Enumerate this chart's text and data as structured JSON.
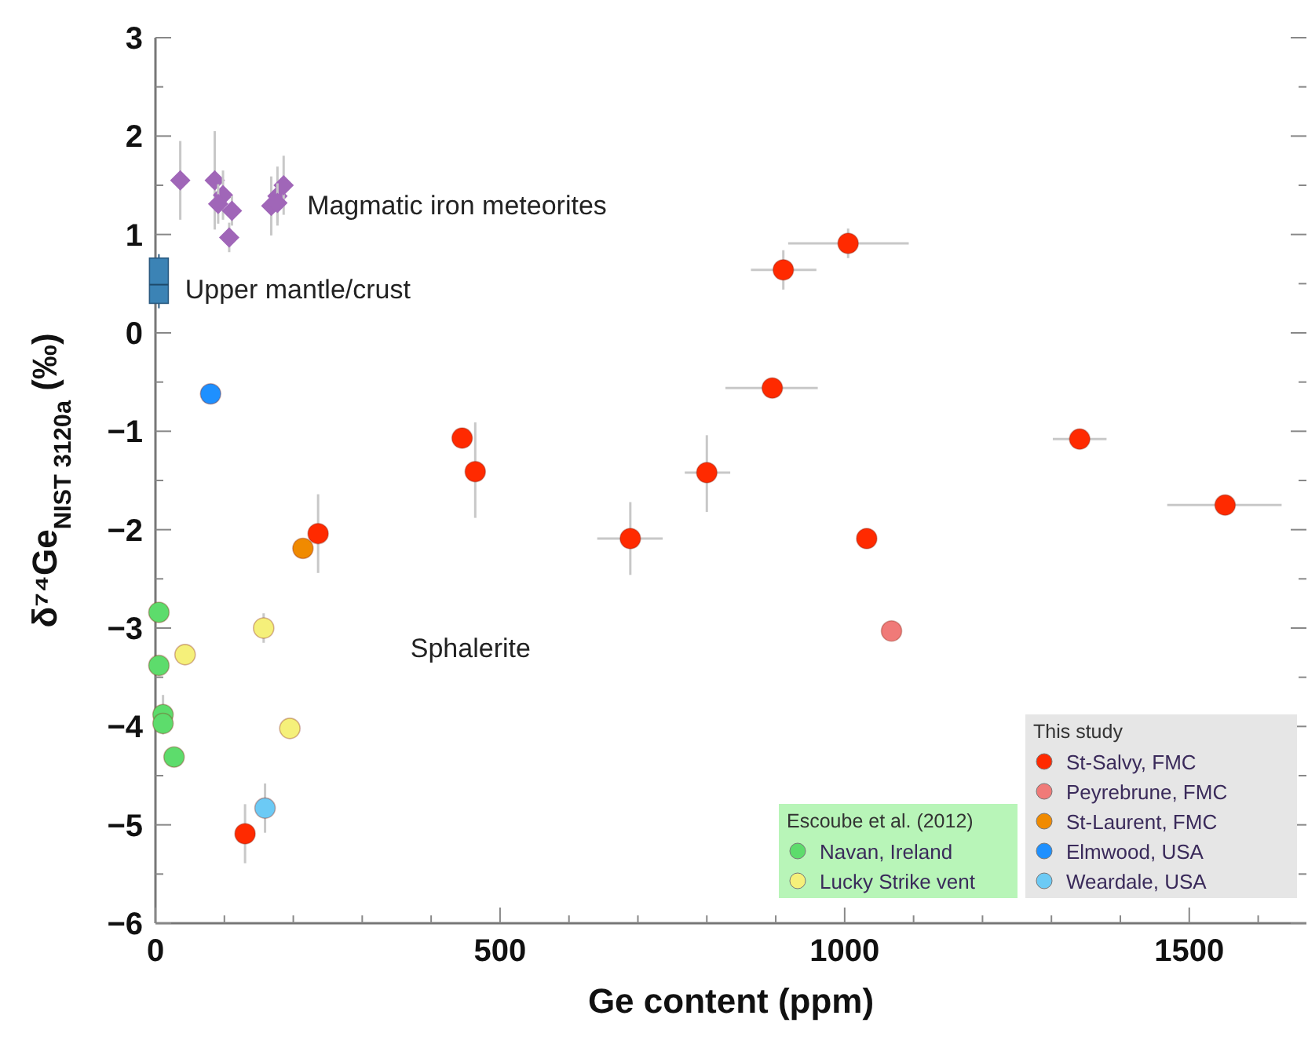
{
  "chart_data": {
    "type": "scatter",
    "xlabel": "Ge content (ppm)",
    "ylabel": "δ⁷⁴Ge$_{NIST 3120a}$ (‰)",
    "xlim": [
      0,
      1670
    ],
    "ylim": [
      -6,
      3
    ],
    "xticks": [
      0,
      {
        "value": 100,
        "label": null
      },
      {
        "value": 200,
        "label": null
      },
      {
        "value": 300,
        "label": null
      },
      {
        "value": 400,
        "label": null
      },
      500,
      {
        "value": 600,
        "label": null
      },
      {
        "value": 700,
        "label": null
      },
      {
        "value": 800,
        "label": null
      },
      {
        "value": 900,
        "label": null
      },
      1000,
      {
        "value": 1100,
        "label": null
      },
      {
        "value": 1200,
        "label": null
      },
      {
        "value": 1300,
        "label": null
      },
      {
        "value": 1400,
        "label": null
      },
      1500,
      {
        "value": 1600,
        "label": null
      }
    ],
    "yticks": [
      -6,
      {
        "value": -5.5,
        "label": null
      },
      -5,
      {
        "value": -4.5,
        "label": null
      },
      -4,
      {
        "value": -3.5,
        "label": null
      },
      -3,
      {
        "value": -2.5,
        "label": null
      },
      -2,
      {
        "value": -1.5,
        "label": null
      },
      -1,
      {
        "value": -0.5,
        "label": null
      },
      0,
      {
        "value": 0.5,
        "label": null
      },
      1,
      {
        "value": 1.5,
        "label": null
      },
      2,
      {
        "value": 2.5,
        "label": null
      },
      3
    ],
    "grid": false,
    "legend": "bottom right",
    "legend_title": "This study",
    "marker": "circle",
    "annotations": [
      "Escoube et al. (2012)",
      "Magmatic iron meteorites",
      "Upper mantle/crust",
      "Sphalerite"
    ],
    "series": [
      {
        "name": "Navan, Ireland",
        "color": "#5ddc6c",
        "x": [
          5,
          5,
          11,
          11,
          27
        ],
        "values": [
          -2.84,
          -3.38,
          -3.88,
          -3.97,
          -4.31
        ],
        "errors": [
          null,
          null,
          0.2,
          null,
          null
        ]
      },
      {
        "name": "Lucky Strike vent",
        "color": "#f5f07a",
        "x": [
          43,
          157,
          195
        ],
        "values": [
          -3.27,
          -3.0,
          -4.02
        ],
        "errors": [
          null,
          0.15,
          null
        ]
      },
      {
        "name": "St-Salvy, FMC",
        "color": "#ff2a00",
        "x": [
          1005,
          911,
          895,
          800,
          689,
          1032,
          1341,
          1552,
          445,
          464,
          236,
          130
        ],
        "values": [
          0.91,
          0.64,
          -0.56,
          -1.42,
          -2.09,
          -2.09,
          -1.08,
          -1.75,
          -1.07,
          -1.41,
          -2.04,
          -5.09
        ],
        "errors": [
          0.15,
          0.2,
          0.1,
          [
            -1.82,
            -1.04
          ],
          [
            -2.46,
            -1.72
          ],
          0.1,
          null,
          null,
          0.1,
          [
            -1.88,
            -0.91
          ],
          [
            -2.44,
            -1.64
          ],
          0.3
        ],
        "xerrors": [
          [
            918,
            1093
          ],
          [
            864,
            959
          ],
          [
            827,
            961
          ],
          [
            768,
            834
          ],
          [
            641,
            736
          ],
          null,
          [
            1302,
            1380
          ],
          [
            1468,
            1634
          ],
          null,
          null,
          null,
          null
        ]
      },
      {
        "name": "Peyrebrune, FMC",
        "color": "#f07a78",
        "x": [
          1068
        ],
        "values": [
          -3.03
        ]
      },
      {
        "name": "St-Laurent, FMC",
        "color": "#f08a00",
        "x": [
          214
        ],
        "values": [
          -2.19
        ]
      },
      {
        "name": "Elmwood, USA",
        "color": "#1e90ff",
        "x": [
          80
        ],
        "values": [
          -0.62
        ],
        "errors": [
          0.1
        ]
      },
      {
        "name": "Weardale, USA",
        "color": "#6ccaf5",
        "x": [
          159
        ],
        "values": [
          -4.83
        ],
        "errors": [
          0.25
        ]
      },
      {
        "color": "#a066b8",
        "marker": "diamond",
        "x": [
          36,
          86,
          98,
          91,
          111,
          107,
          168,
          177,
          186,
          177
        ],
        "values": [
          1.55,
          1.55,
          1.4,
          1.31,
          1.24,
          0.97,
          1.29,
          1.39,
          1.5,
          1.32
        ],
        "errors": [
          0.4,
          0.5,
          0.25,
          0.2,
          0.15,
          0.15,
          0.3,
          0.3,
          0.3,
          0.2
        ]
      },
      {
        "type": "box",
        "color": "#3b83b5",
        "x": [
          5
        ],
        "boxes": [
          {
            "low": 0.25,
            "q1": 0.3,
            "median": 0.49,
            "q3": 0.76,
            "high": 0.8
          }
        ]
      }
    ]
  }
}
